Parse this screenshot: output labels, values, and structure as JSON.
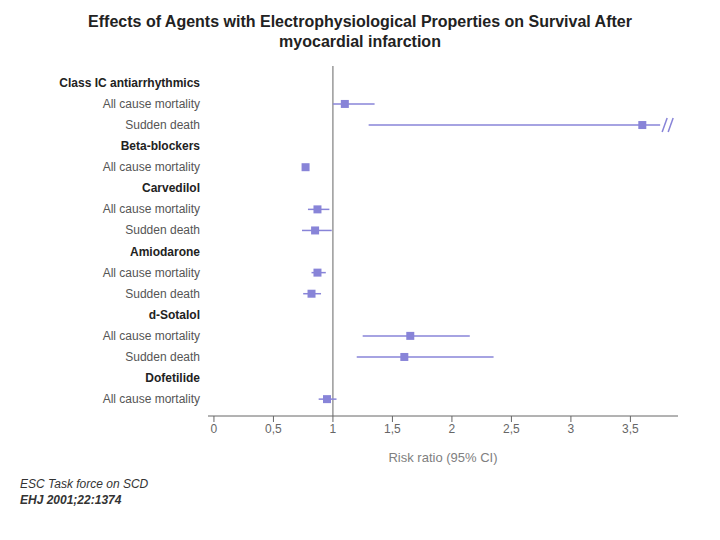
{
  "chart_data": {
    "type": "forest",
    "title": "Effects of Agents with Electrophysiological Properties on Survival After myocardial infarction",
    "xlabel": "Risk ratio (95% CI)",
    "annotations": [
      "ESC Task force on SCD",
      "EHJ 2001;22:1374"
    ],
    "categories": [
      "Class IC antiarrhythmics",
      "All cause mortality",
      "Sudden death",
      "Beta-blockers",
      "All cause mortality",
      "Carvedilol",
      "All cause mortality",
      "Sudden death",
      "Amiodarone",
      "All cause mortality",
      "Sudden death",
      "d-Sotalol",
      "All cause mortality",
      "Sudden death",
      "Dofetilide",
      "All cause mortality"
    ],
    "values": [
      null,
      1.1,
      3.6,
      null,
      0.77,
      null,
      0.87,
      0.85,
      null,
      0.87,
      0.82,
      null,
      1.65,
      1.6,
      null,
      0.95
    ],
    "lo": [
      null,
      1.0,
      1.3,
      null,
      0.77,
      null,
      0.79,
      0.74,
      null,
      0.82,
      0.75,
      null,
      1.25,
      1.2,
      null,
      0.88
    ],
    "hi": [
      null,
      1.35,
      3.75,
      null,
      0.77,
      null,
      0.97,
      0.99,
      null,
      0.94,
      0.9,
      null,
      2.15,
      2.35,
      null,
      1.03
    ],
    "truncated": [
      null,
      false,
      true,
      null,
      false,
      null,
      false,
      false,
      null,
      false,
      false,
      null,
      false,
      false,
      null,
      false
    ],
    "reference_line": 1,
    "xlim": [
      -0.05,
      3.9
    ],
    "xticks": [
      0,
      {
        "value": 0.5,
        "label": "0,5"
      },
      1,
      {
        "value": 1.5,
        "label": "1,5"
      },
      2,
      {
        "value": 2.5,
        "label": "2,5"
      },
      3,
      {
        "value": 3.5,
        "label": "3,5"
      }
    ]
  }
}
